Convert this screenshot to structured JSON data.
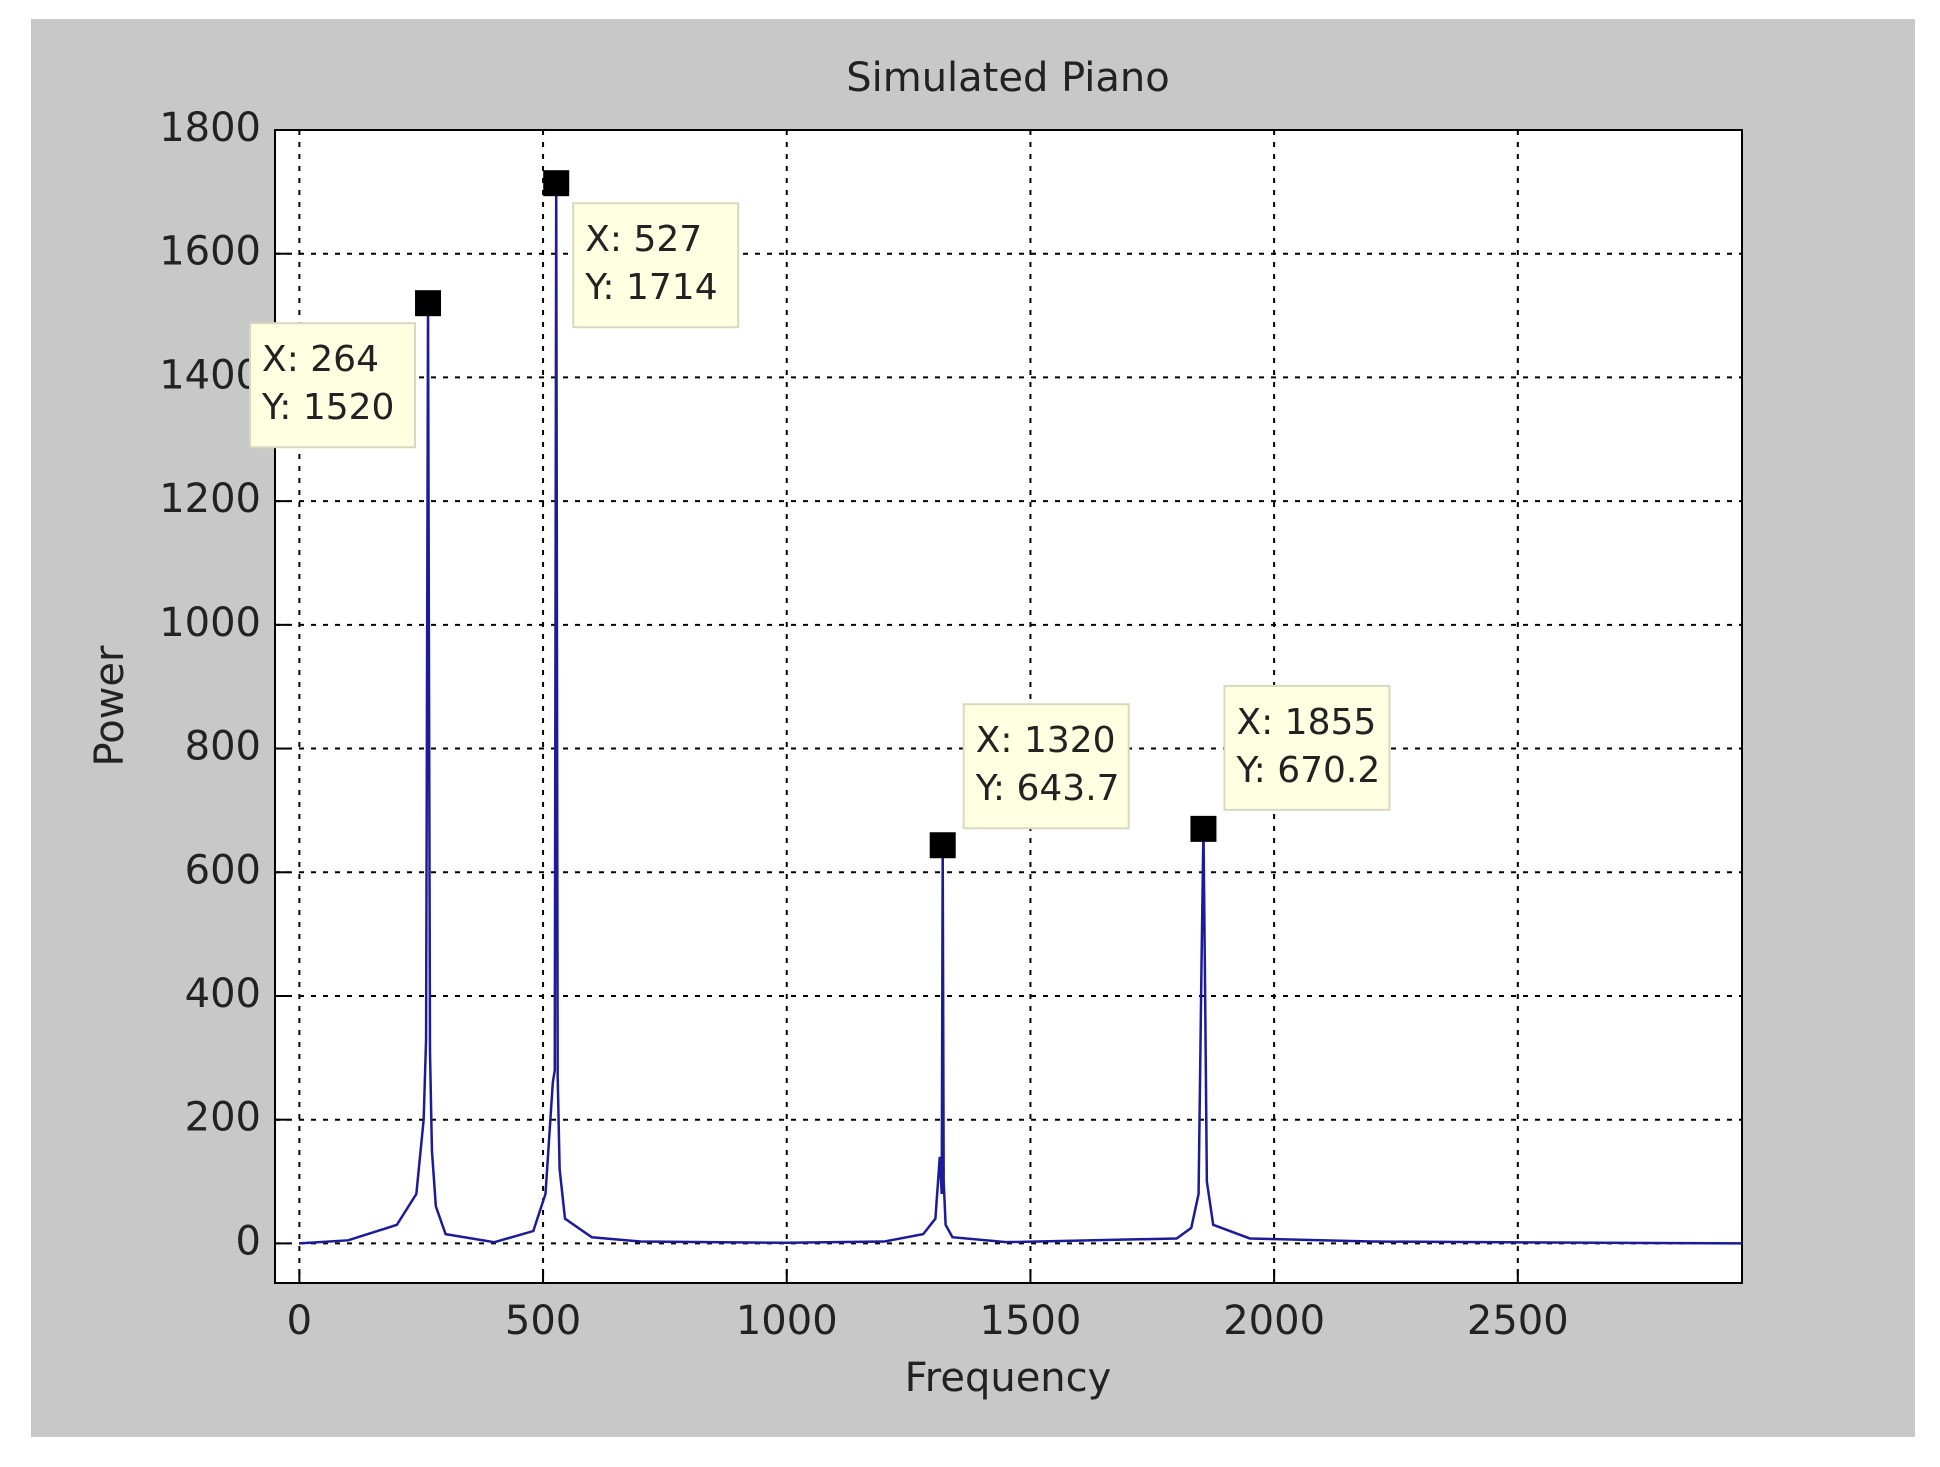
{
  "chart_data": {
    "type": "line",
    "title": "Simulated Piano",
    "x_label": "Frequency",
    "y_label": "Power",
    "xlim": [
      -50,
      2960
    ],
    "ylim": [
      -64,
      1800
    ],
    "xticks": [
      0,
      500,
      1000,
      1500,
      2000,
      2500
    ],
    "yticks": [
      0,
      200,
      400,
      600,
      800,
      1000,
      1200,
      1400,
      1600,
      1800
    ],
    "grid": true,
    "series": [
      {
        "color": "#1c1c99",
        "x": [
          0,
          100,
          200,
          240,
          255,
          260,
          264,
          268,
          272,
          280,
          300,
          400,
          480,
          505,
          520,
          524,
          527,
          530,
          534,
          545,
          600,
          700,
          1000,
          1200,
          1280,
          1305,
          1314,
          1318,
          1320,
          1322,
          1326,
          1340,
          1450,
          1800,
          1830,
          1845,
          1851,
          1855,
          1858,
          1862,
          1875,
          1950,
          2200,
          2960
        ],
        "values": [
          0,
          5,
          30,
          80,
          200,
          330,
          1520,
          310,
          150,
          60,
          15,
          2,
          20,
          80,
          260,
          280,
          1714,
          270,
          120,
          40,
          10,
          3,
          1,
          3,
          15,
          40,
          140,
          80,
          643.7,
          100,
          30,
          10,
          2,
          8,
          25,
          80,
          450,
          670.2,
          440,
          100,
          30,
          8,
          3,
          0
        ]
      }
    ],
    "datatips": [
      {
        "x": 264,
        "y": 1520,
        "label_x": "X: 264",
        "label_y": "Y: 1520"
      },
      {
        "x": 527,
        "y": 1714,
        "label_x": "X: 527",
        "label_y": "Y: 1714"
      },
      {
        "x": 1320,
        "y": 643.7,
        "label_x": "X: 1320",
        "label_y": "Y: 643.7"
      },
      {
        "x": 1855,
        "y": 670.2,
        "label_x": "X: 1855",
        "label_y": "Y: 670.2"
      }
    ]
  }
}
